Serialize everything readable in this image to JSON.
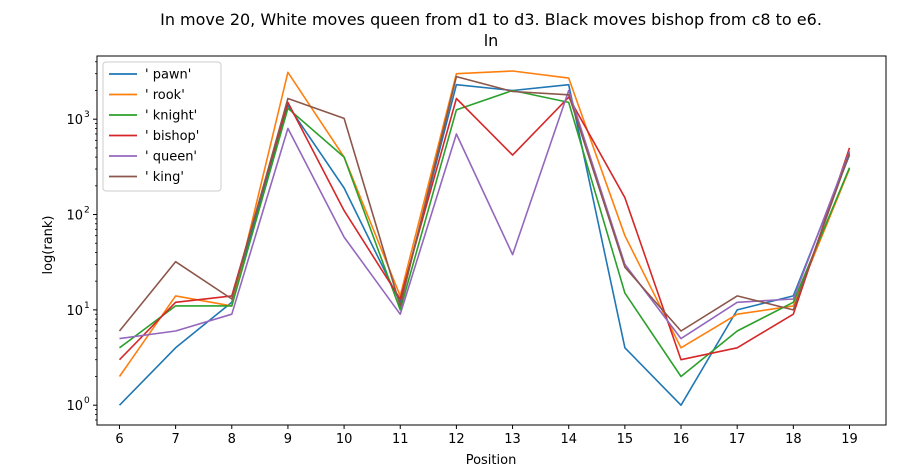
{
  "chart_data": {
    "type": "line",
    "title": "In move 20, White moves queen from d1 to d3. Black moves bishop from c8 to e6.",
    "subtitle": "ln",
    "xlabel": "Position",
    "ylabel": "log(rank)",
    "yscale": "log",
    "x": [
      6,
      7,
      8,
      9,
      10,
      11,
      12,
      13,
      14,
      15,
      16,
      17,
      18,
      19
    ],
    "xlim": [
      5.6,
      19.65
    ],
    "ylim": [
      0.62,
      4600
    ],
    "y_ticks": [
      1,
      10,
      100,
      1000
    ],
    "y_tick_labels": [
      "10",
      "10",
      "10",
      "10"
    ],
    "y_tick_exponents": [
      "0",
      "1",
      "2",
      "3"
    ],
    "grid": false,
    "legend_position": "top-left",
    "series": [
      {
        "name": "' pawn'",
        "color": "#1f77b4",
        "values": [
          1,
          4,
          12,
          1400,
          190,
          12,
          2300,
          2000,
          2300,
          4,
          1,
          10,
          14,
          420
        ]
      },
      {
        "name": "' rook'",
        "color": "#ff7f0e",
        "values": [
          2,
          14,
          11,
          3100,
          400,
          14,
          3000,
          3200,
          2700,
          60,
          4,
          9,
          11,
          300
        ]
      },
      {
        "name": "' knight'",
        "color": "#2ca02c",
        "values": [
          4,
          11,
          11,
          1300,
          400,
          10,
          1250,
          2000,
          1500,
          15,
          2,
          6,
          12,
          310
        ]
      },
      {
        "name": "' bishop'",
        "color": "#d62728",
        "values": [
          3,
          12,
          14,
          1500,
          110,
          13,
          1650,
          420,
          1700,
          150,
          3,
          4,
          9,
          500
        ]
      },
      {
        "name": "' queen'",
        "color": "#9467bd",
        "values": [
          5,
          6,
          9,
          800,
          58,
          9,
          700,
          38,
          2000,
          30,
          5,
          12,
          13,
          460
        ]
      },
      {
        "name": "' king'",
        "color": "#8c564b",
        "values": [
          6,
          32,
          13,
          1650,
          1020,
          11,
          2800,
          1950,
          1800,
          28,
          6,
          14,
          10,
          440
        ]
      }
    ]
  }
}
